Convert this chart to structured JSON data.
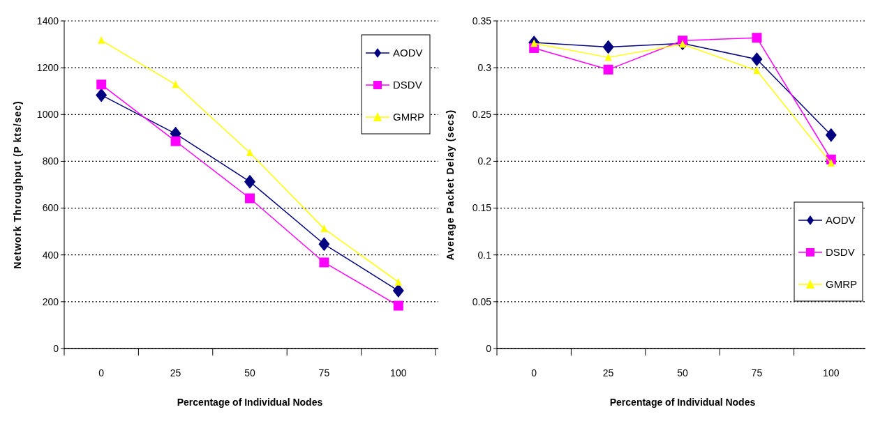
{
  "chart_data": [
    {
      "type": "line",
      "xlabel": "Percentage of Individual Nodes",
      "ylabel": "Network Throughput (P kts/sec)",
      "categories": [
        "0",
        "25",
        "50",
        "75",
        "100"
      ],
      "series": [
        {
          "name": "AODV",
          "color": "#000080",
          "marker": "diamond",
          "values": [
            1083,
            918,
            713,
            446,
            247
          ]
        },
        {
          "name": "DSDV",
          "color": "#ff00ff",
          "marker": "square",
          "values": [
            1128,
            886,
            642,
            368,
            183
          ]
        },
        {
          "name": "GMRP",
          "color": "#ffff00",
          "marker": "triangle",
          "values": [
            1317,
            1128,
            837,
            512,
            284
          ]
        }
      ],
      "ylim": [
        0,
        1400
      ],
      "yticks": [
        0,
        200,
        400,
        600,
        800,
        1000,
        1200,
        1400
      ],
      "grid": "y",
      "legend": "top right"
    },
    {
      "type": "line",
      "xlabel": "Percentage of Individual Nodes",
      "ylabel": "Average Packet Delay (secs)",
      "categories": [
        "0",
        "25",
        "50",
        "75",
        "100"
      ],
      "series": [
        {
          "name": "AODV",
          "color": "#000080",
          "marker": "diamond",
          "values": [
            0.327,
            0.322,
            0.326,
            0.309,
            0.228
          ]
        },
        {
          "name": "DSDV",
          "color": "#ff00ff",
          "marker": "square",
          "values": [
            0.321,
            0.298,
            0.329,
            0.332,
            0.202
          ]
        },
        {
          "name": "GMRP",
          "color": "#ffff00",
          "marker": "triangle",
          "values": [
            0.326,
            0.311,
            0.325,
            0.297,
            0.198
          ]
        }
      ],
      "ylim": [
        0,
        0.35
      ],
      "yticks": [
        0,
        0.05,
        0.1,
        0.15,
        0.2,
        0.25,
        0.3,
        0.35
      ],
      "grid": "y",
      "legend": "bottom right"
    }
  ]
}
